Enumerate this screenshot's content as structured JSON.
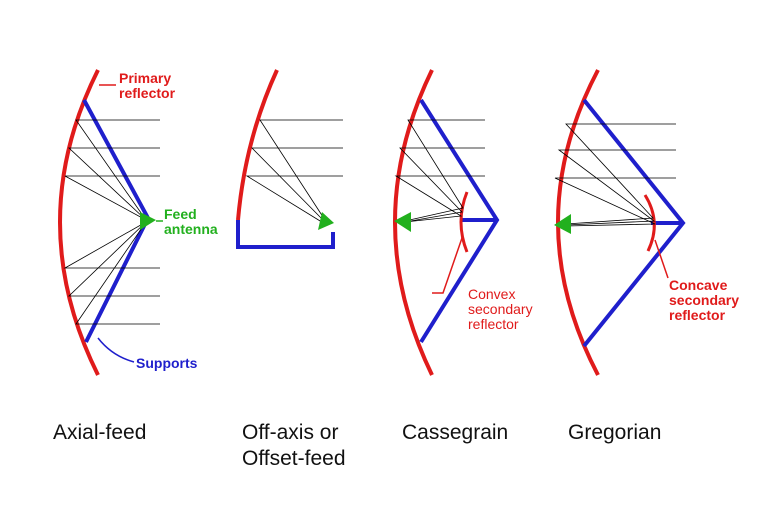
{
  "captions": {
    "axial": "Axial-feed",
    "offset_line1": "Off-axis or",
    "offset_line2": "Offset-feed",
    "cassegrain": "Cassegrain",
    "gregorian": "Gregorian"
  },
  "labels": {
    "primary_reflector_line1": "Primary",
    "primary_reflector_line2": "reflector",
    "feed_antenna_line1": "Feed",
    "feed_antenna_line2": "antenna",
    "supports": "Supports",
    "convex_line1": "Convex",
    "convex_line2": "secondary",
    "convex_line3": "reflector",
    "concave_line1": "Concave",
    "concave_line2": "secondary",
    "concave_line3": "reflector"
  },
  "colors": {
    "reflector": "#e01b1b",
    "support": "#1f1fcc",
    "feed": "#22b01e",
    "ray": "#000000"
  }
}
